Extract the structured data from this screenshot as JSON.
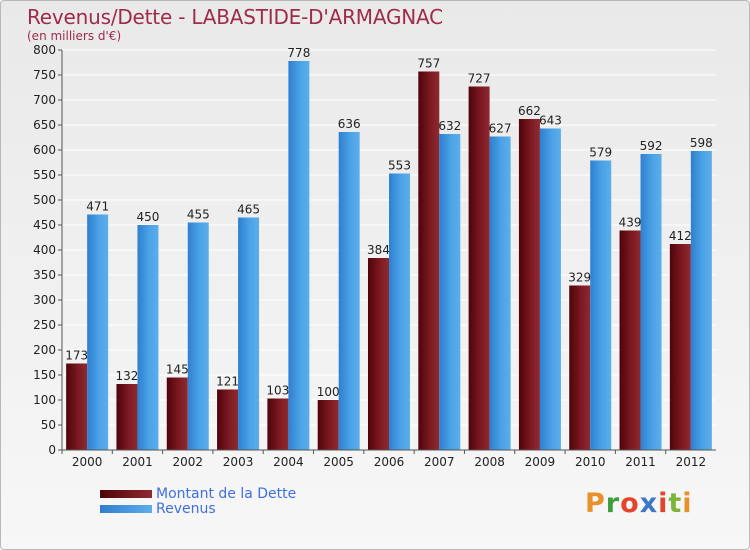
{
  "title": "Revenus/Dette - LABASTIDE-D'ARMAGNAC",
  "subtitle": "(en milliers d'€)",
  "logo_text": "Proxiti",
  "colors": {
    "dette": "#6b0b12",
    "revenus": "#3f95dc",
    "title": "#9e2b4a",
    "legend_text": "#3f6fe0"
  },
  "chart_data": {
    "type": "bar",
    "categories": [
      "2000",
      "2001",
      "2002",
      "2003",
      "2004",
      "2005",
      "2006",
      "2007",
      "2008",
      "2009",
      "2010",
      "2011",
      "2012"
    ],
    "series": [
      {
        "name": "Montant de la Dette",
        "values": [
          173,
          132,
          145,
          121,
          103,
          100,
          384,
          757,
          727,
          662,
          329,
          439,
          412
        ]
      },
      {
        "name": "Revenus",
        "values": [
          471,
          450,
          455,
          465,
          778,
          636,
          553,
          632,
          627,
          643,
          579,
          592,
          598
        ]
      }
    ],
    "ylim": [
      0,
      800
    ],
    "yticks": [
      0,
      50,
      100,
      150,
      200,
      250,
      300,
      350,
      400,
      450,
      500,
      550,
      600,
      650,
      700,
      750,
      800
    ],
    "grid": true,
    "legend_position": "bottom-left"
  }
}
